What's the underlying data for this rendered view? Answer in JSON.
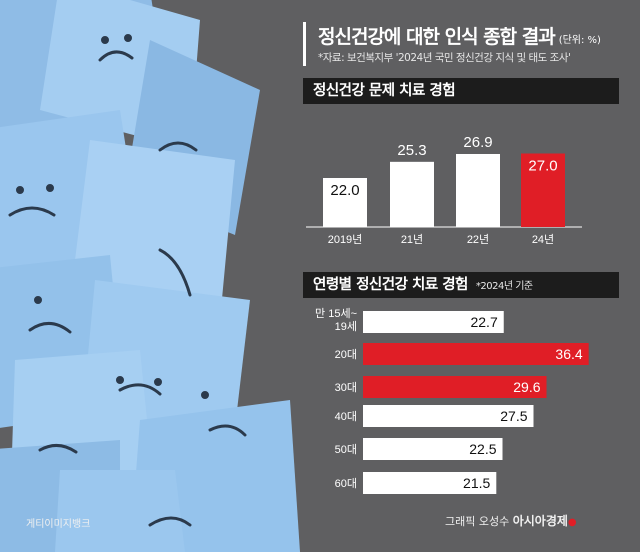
{
  "title": "정신건강에 대한 인식 종합 결과",
  "unit": "(단위: %)",
  "source": "*자료: 보건복지부 '2024년 국민 정신건강 지식 및 태도 조사'",
  "credit_left": "게티이미지뱅크",
  "credit_right": "그래픽 오성수",
  "credit_brand": "아시아경제",
  "colors": {
    "highlight": "#e01e26",
    "bar": "#ffffff",
    "header": "#1c1c1c"
  },
  "chart_data": [
    {
      "type": "bar",
      "title": "정신건강 문제 치료 경험",
      "categories": [
        "2019년",
        "21년",
        "22년",
        "24년"
      ],
      "values": [
        22.0,
        25.3,
        26.9,
        27.0
      ],
      "labels": [
        "22.0",
        "25.3",
        "26.9",
        "27.0"
      ],
      "highlight": [
        false,
        false,
        false,
        true
      ]
    },
    {
      "type": "bar",
      "orientation": "horizontal",
      "title": "연령별 정신건강 치료 경험",
      "note": "*2024년 기준",
      "categories": [
        [
          "만 15세~",
          "19세"
        ],
        [
          "20대"
        ],
        [
          "30대"
        ],
        [
          "40대"
        ],
        [
          "50대"
        ],
        [
          "60대"
        ]
      ],
      "values": [
        22.7,
        36.4,
        29.6,
        27.5,
        22.5,
        21.5
      ],
      "labels": [
        "22.7",
        "36.4",
        "29.6",
        "27.5",
        "22.5",
        "21.5"
      ],
      "highlight": [
        false,
        true,
        true,
        false,
        false,
        false
      ]
    }
  ]
}
